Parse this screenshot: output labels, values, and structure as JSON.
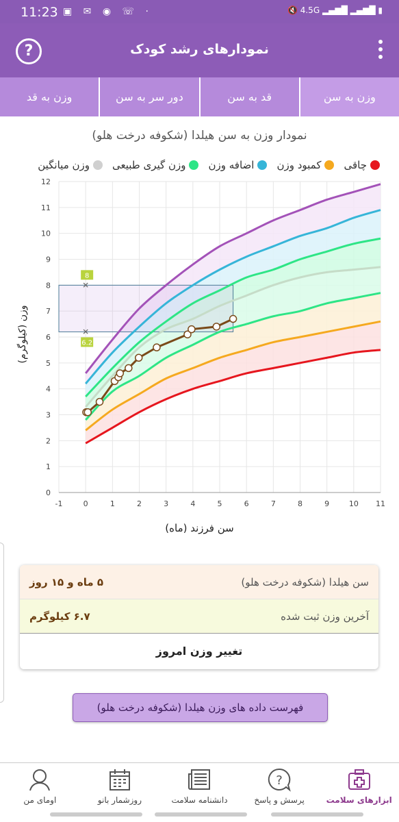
{
  "status_bar": {
    "time": "11:23",
    "network": "4.5G"
  },
  "app_bar": {
    "title": "نمودارهای رشد کودک",
    "help_icon": "question-circle-icon",
    "menu_icon": "more-vert-icon"
  },
  "tabs": [
    {
      "label": "وزن به سن",
      "active": true
    },
    {
      "label": "قد به سن",
      "active": false
    },
    {
      "label": "دور سر به سن",
      "active": false
    },
    {
      "label": "وزن به قد",
      "active": false
    }
  ],
  "chart_title": "نمودار وزن به سن هیلدا (شکوفه درخت هلو)",
  "legend": [
    {
      "label": "چاقی",
      "color": "#e6161e"
    },
    {
      "label": "کمبود وزن",
      "color": "#f5a91f"
    },
    {
      "label": "اضافه وزن",
      "color": "#36b5d8"
    },
    {
      "label": "وزن گیری طبیعی",
      "color": "#2ee586"
    },
    {
      "label": "وزن میانگین",
      "color": "#d0d0d0"
    }
  ],
  "chart_data": {
    "type": "line",
    "xlabel": "سن فرزند (ماه)",
    "ylabel": "وزن (کیلوگرم)",
    "xlim": [
      -1,
      11
    ],
    "ylim": [
      0,
      12
    ],
    "x_ticks": [
      "-1",
      "0",
      "1",
      "2",
      "3",
      "4",
      "5",
      "6",
      "7",
      "8",
      "9",
      "10",
      "11"
    ],
    "y_ticks": [
      "0",
      "1",
      "2",
      "3",
      "4",
      "5",
      "6",
      "7",
      "8",
      "9",
      "10",
      "11",
      "12"
    ],
    "grid": true,
    "reference_x": [
      0,
      1,
      2,
      3,
      4,
      5,
      6,
      7,
      8,
      9,
      10,
      11
    ],
    "reference_curves": [
      {
        "color": "#a352b8",
        "values": [
          4.6,
          5.9,
          7.1,
          8.0,
          8.8,
          9.5,
          10.0,
          10.5,
          10.9,
          11.3,
          11.6,
          11.9
        ]
      },
      {
        "color": "#36b5d8",
        "values": [
          4.2,
          5.4,
          6.4,
          7.3,
          8.0,
          8.6,
          9.1,
          9.5,
          9.9,
          10.2,
          10.6,
          10.9
        ]
      },
      {
        "color": "#2ee586",
        "values": [
          3.7,
          4.8,
          5.8,
          6.6,
          7.3,
          7.8,
          8.3,
          8.6,
          9.0,
          9.3,
          9.6,
          9.8
        ]
      },
      {
        "color": "#c6dcc8",
        "values": [
          3.3,
          4.5,
          5.6,
          6.3,
          6.7,
          7.2,
          7.6,
          8.0,
          8.3,
          8.5,
          8.6,
          8.7
        ]
      },
      {
        "color": "#2ee586",
        "values": [
          2.8,
          3.9,
          4.5,
          5.2,
          5.7,
          6.2,
          6.5,
          6.8,
          7.0,
          7.3,
          7.5,
          7.7
        ]
      },
      {
        "color": "#f5a91f",
        "values": [
          2.4,
          3.2,
          3.8,
          4.4,
          4.8,
          5.2,
          5.5,
          5.8,
          6.0,
          6.2,
          6.4,
          6.6
        ]
      },
      {
        "color": "#e6161e",
        "values": [
          1.9,
          2.5,
          3.1,
          3.6,
          4.0,
          4.3,
          4.6,
          4.8,
          5.0,
          5.2,
          5.4,
          5.5
        ]
      }
    ],
    "band_colors": [
      "#f4e6f8",
      "#dbf2fa",
      "#cffbe3",
      "#d9fbe9",
      "#fdf0d6",
      "#fde0e0"
    ],
    "series": [
      {
        "name": "",
        "color": "#7a4a1a",
        "x": [
          0.02,
          0.08,
          0.52,
          1.08,
          1.22,
          1.28,
          1.6,
          1.98,
          2.65,
          3.8,
          3.95,
          4.88,
          5.5
        ],
        "y": [
          3.1,
          3.1,
          3.5,
          4.3,
          4.45,
          4.6,
          4.8,
          5.2,
          5.6,
          6.1,
          6.3,
          6.4,
          6.7
        ]
      }
    ],
    "highlight": {
      "x_range": [
        -1,
        5.5
      ],
      "y_range": [
        6.2,
        8.0
      ],
      "low_label": "6.2",
      "high_label": "8"
    }
  },
  "info_card": {
    "age_label": "سن هیلدا (شکوفه درخت هلو)",
    "age_value": "۵ ماه و ۱۵ روز",
    "weight_label": "آخرین وزن ثبت شده",
    "weight_value": "۶.۷ کیلوگرم",
    "change_button": "تغییر وزن امروز"
  },
  "list_button": "فهرست داده های وزن هیلدا (شکوفه درخت هلو)",
  "bottom_nav": [
    {
      "label": "ابزارهای سلامت",
      "icon": "medical-kit-icon",
      "active": true
    },
    {
      "label": "پرسش و پاسخ",
      "icon": "question-bubble-icon",
      "active": false
    },
    {
      "label": "دانشنامه سلامت",
      "icon": "newspaper-icon",
      "active": false
    },
    {
      "label": "روزشمار بانو",
      "icon": "calendar-icon",
      "active": false
    },
    {
      "label": "اومای من",
      "icon": "user-avatar-icon",
      "active": false
    }
  ]
}
